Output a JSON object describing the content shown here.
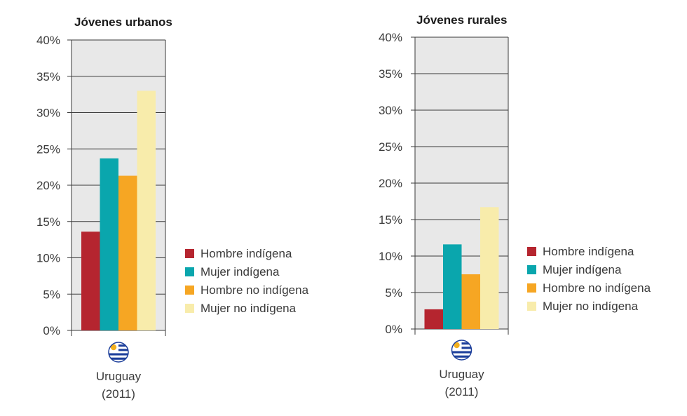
{
  "chart_data": [
    {
      "type": "bar",
      "title": "Jóvenes urbanos",
      "xlabel": "",
      "ylabel": "",
      "ylim": [
        0,
        40
      ],
      "yticks": [
        "0%",
        "5%",
        "10%",
        "15%",
        "20%",
        "25%",
        "30%",
        "35%",
        "40%"
      ],
      "categories": [
        "Uruguay (2011)"
      ],
      "category_lines": [
        "Uruguay",
        "(2011)"
      ],
      "category_icon": "uruguay-flag-icon",
      "grid": true,
      "legend_position": "right",
      "series": [
        {
          "name": "Hombre indígena",
          "color": "#b5252f",
          "values": [
            13.6
          ]
        },
        {
          "name": "Mujer indígena",
          "color": "#0aa6ad",
          "values": [
            23.7
          ]
        },
        {
          "name": "Hombre no indígena",
          "color": "#f6a623",
          "values": [
            21.3
          ]
        },
        {
          "name": "Mujer no indígena",
          "color": "#f8ecab",
          "values": [
            33.0
          ]
        }
      ]
    },
    {
      "type": "bar",
      "title": "Jóvenes rurales",
      "xlabel": "",
      "ylabel": "",
      "ylim": [
        0,
        40
      ],
      "yticks": [
        "0%",
        "5%",
        "10%",
        "15%",
        "20%",
        "25%",
        "30%",
        "35%",
        "40%"
      ],
      "categories": [
        "Uruguay (2011)"
      ],
      "category_lines": [
        "Uruguay",
        "(2011)"
      ],
      "category_icon": "uruguay-flag-icon",
      "grid": true,
      "legend_position": "right",
      "series": [
        {
          "name": "Hombre indígena",
          "color": "#b5252f",
          "values": [
            2.7
          ]
        },
        {
          "name": "Mujer indígena",
          "color": "#0aa6ad",
          "values": [
            11.6
          ]
        },
        {
          "name": "Hombre no indígena",
          "color": "#f6a623",
          "values": [
            7.5
          ]
        },
        {
          "name": "Mujer no indígena",
          "color": "#f8ecab",
          "values": [
            16.7
          ]
        }
      ]
    }
  ],
  "style": {
    "plot_background": "#e8e8e8",
    "grid_color": "#3a3a3a",
    "axis_color": "#3a3a3a"
  }
}
